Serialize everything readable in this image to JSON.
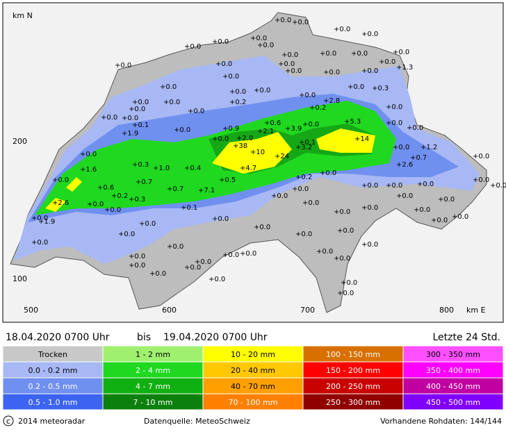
{
  "map": {
    "axis": {
      "y_title": "km N",
      "x_title": "km E",
      "y_labels": [
        "200",
        "100"
      ],
      "x_labels": [
        "500",
        "600",
        "700",
        "800"
      ]
    },
    "stations": [
      "+0.0",
      "+0.0",
      "+0.0",
      "+0.0",
      "+0.0",
      "+0.0",
      "+0.0",
      "+0.0",
      "+0.0",
      "+0.0",
      "+0.0",
      "+0.0",
      "+0.0",
      "+0.0",
      "+0.0",
      "+0.0",
      "+0.0",
      "+0.0",
      "+0.0",
      "+1.3",
      "+0.0",
      "+0.0",
      "+0.0",
      "+0.0",
      "+0.0",
      "+0.0",
      "+0.3",
      "+0.0",
      "+0.0",
      "+0.2",
      "+2.8",
      "+0.2",
      "+0.0",
      "+0.0",
      "+0.0",
      "+0.0",
      "+0.0",
      "+0.1",
      "+1.9",
      "+0.0",
      "+0.9",
      "+0.6",
      "+2.1",
      "+3.9",
      "+5.3",
      "+0.0",
      "+0.0",
      "+0.0",
      "+2.0",
      "+0.0",
      "+0.1",
      "+3.2",
      "+14",
      "+38",
      "+10",
      "+24",
      "+0.0",
      "+1.2",
      "+0.0",
      "+0.3",
      "+1.0",
      "+0.4",
      "+4.7",
      "+0.7",
      "+2.6",
      "+0.0",
      "+1.6",
      "+0.0",
      "+0.2",
      "+0.0",
      "+0.7",
      "+0.5",
      "+0.0",
      "+0.0",
      "+0.6",
      "+0.7",
      "+7.1",
      "+0.0",
      "+0.0",
      "+0.0",
      "+0.0",
      "+0.0",
      "+0.2",
      "+0.3",
      "+0.0",
      "+0.0",
      "+2.6",
      "+0.0",
      "+0.1",
      "+0.0",
      "+0.0",
      "+0.0",
      "+0.0",
      "+0.0",
      "+0.0",
      "+1.9",
      "+0.0",
      "+0.0",
      "+0.0",
      "+0.0",
      "+0.0",
      "+0.0",
      "+0.0",
      "+0.0",
      "+0.0",
      "+0.0",
      "+0.0",
      "+0.0",
      "+0.0",
      "+0.0",
      "+0.0",
      "+0.0",
      "+0.0",
      "+0.0",
      "+0.0",
      "+0.0",
      "+0.0",
      "+0.0",
      "+0.0"
    ]
  },
  "period": {
    "from": "18.04.2020 0700 Uhr",
    "sep": "bis",
    "to": "19.04.2020 0700 Uhr",
    "span": "Letzte 24 Std."
  },
  "legend": [
    [
      {
        "label": "Trocken",
        "color": "#c8c8c8"
      },
      {
        "label": "0.0 - 0.2 mm",
        "color": "#a8b8f4"
      },
      {
        "label": "0.2 - 0.5 mm",
        "color": "#7090f0"
      },
      {
        "label": "0.5 - 1.0 mm",
        "color": "#3c64f0"
      }
    ],
    [
      {
        "label": "1 - 2 mm",
        "color": "#a0f070"
      },
      {
        "label": "2 - 4 mm",
        "color": "#20d820"
      },
      {
        "label": "4 - 7 mm",
        "color": "#10b010"
      },
      {
        "label": "7 - 10 mm",
        "color": "#0c800c"
      }
    ],
    [
      {
        "label": "10 - 20 mm",
        "color": "#ffff00"
      },
      {
        "label": "20 - 40 mm",
        "color": "#ffc800"
      },
      {
        "label": "40 - 70 mm",
        "color": "#ffa000"
      },
      {
        "label": "70 - 100 mm",
        "color": "#ff8000"
      }
    ],
    [
      {
        "label": "100 - 150 mm",
        "color": "#d87000"
      },
      {
        "label": "150 - 200 mm",
        "color": "#ff0000"
      },
      {
        "label": "200 - 250 mm",
        "color": "#c80000"
      },
      {
        "label": "250 - 300 mm",
        "color": "#900000"
      }
    ],
    [
      {
        "label": "300 - 350 mm",
        "color": "#ff50ff"
      },
      {
        "label": "350 - 400 mm",
        "color": "#ff00ff"
      },
      {
        "label": "400 - 450 mm",
        "color": "#c000a0"
      },
      {
        "label": "450 - 500 mm",
        "color": "#8000ff"
      }
    ]
  ],
  "footer": {
    "copyright": "2014 meteoradar",
    "source": "Datenquelle: MeteoSchweiz",
    "raw": "Vorhandene Rohdaten: 144/144"
  }
}
